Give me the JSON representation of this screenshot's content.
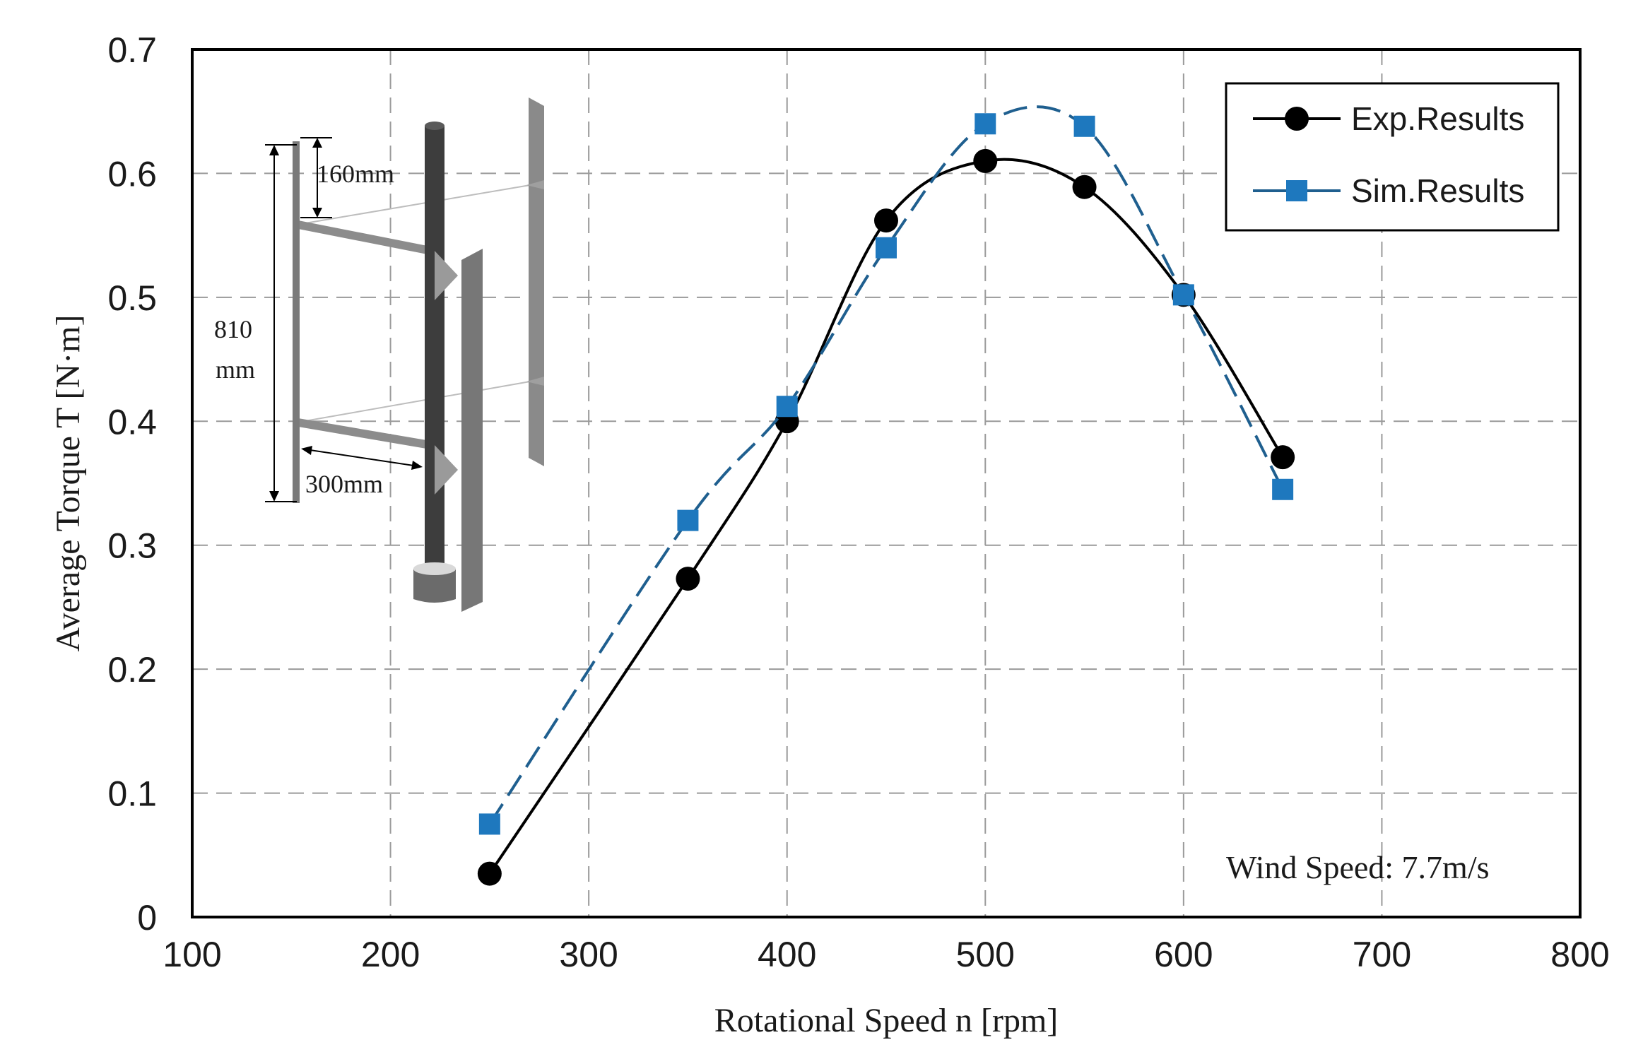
{
  "chart_data": {
    "type": "line",
    "title": "",
    "xlabel": "Rotational  Speed n [rpm]",
    "ylabel": "Average  Torque T [N·m]",
    "xlim": [
      100,
      800
    ],
    "ylim": [
      0,
      0.7
    ],
    "xticks": [
      100,
      200,
      300,
      400,
      500,
      600,
      700,
      800
    ],
    "yticks": [
      0,
      0.1,
      0.2,
      0.3,
      0.4,
      0.5,
      0.6,
      0.7
    ],
    "xtick_labels": [
      "100",
      "200",
      "300",
      "400",
      "500",
      "600",
      "700",
      "800"
    ],
    "ytick_labels": [
      "0",
      "0.1",
      "0.2",
      "0.3",
      "0.4",
      "0.5",
      "0.6",
      "0.7"
    ],
    "grid": true,
    "legend_position": "top-right",
    "series": [
      {
        "name": "Exp.Results",
        "color": "#000000",
        "marker": "circle",
        "line": "solid",
        "x": [
          250,
          350,
          400,
          450,
          500,
          550,
          600,
          650
        ],
        "y": [
          0.035,
          0.273,
          0.4,
          0.562,
          0.61,
          0.589,
          0.502,
          0.371
        ]
      },
      {
        "name": "Sim.Results",
        "color": "#1e78be",
        "line_color": "#1f5f8f",
        "marker": "square",
        "line": "dashed",
        "x": [
          250,
          350,
          400,
          450,
          500,
          550,
          600,
          650
        ],
        "y": [
          0.075,
          0.32,
          0.412,
          0.54,
          0.64,
          0.638,
          0.502,
          0.345
        ]
      }
    ],
    "annotations": {
      "wind_speed": "Wind  Speed:  7.7m/s",
      "inset_dimensions": {
        "height_top": "160mm",
        "height_total_line1": "810",
        "height_total_line2": "mm",
        "width": "300mm"
      }
    }
  }
}
